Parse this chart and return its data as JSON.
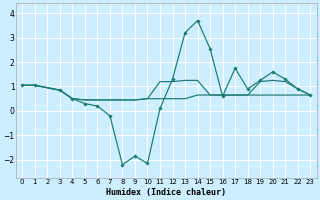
{
  "xlabel": "Humidex (Indice chaleur)",
  "background_color": "#cceeff",
  "grid_color": "#ffffff",
  "line_color": "#1a7a6e",
  "xlim": [
    -0.5,
    23.5
  ],
  "ylim": [
    -2.75,
    4.4
  ],
  "yticks": [
    -2,
    -1,
    0,
    1,
    2,
    3,
    4
  ],
  "xticks": [
    0,
    1,
    2,
    3,
    4,
    5,
    6,
    7,
    8,
    9,
    10,
    11,
    12,
    13,
    14,
    15,
    16,
    17,
    18,
    19,
    20,
    21,
    22,
    23
  ],
  "line1": {
    "x": [
      0,
      1,
      3,
      4,
      5,
      6,
      7,
      8,
      9,
      10,
      11,
      12,
      13,
      14,
      15,
      16,
      17,
      18,
      19,
      20,
      21,
      22,
      23
    ],
    "y": [
      1.05,
      1.05,
      0.85,
      0.5,
      0.3,
      0.2,
      -0.2,
      -2.2,
      -1.85,
      -2.15,
      0.1,
      1.3,
      3.2,
      3.7,
      2.55,
      0.6,
      1.75,
      0.9,
      1.25,
      1.6,
      1.3,
      0.9,
      0.65
    ]
  },
  "line2": {
    "x": [
      0,
      1,
      3,
      4,
      5,
      6,
      7,
      8,
      9,
      10,
      11,
      12,
      13,
      14,
      15,
      16,
      17,
      18,
      19,
      20,
      21,
      22,
      23
    ],
    "y": [
      1.05,
      1.05,
      0.85,
      0.5,
      0.45,
      0.45,
      0.45,
      0.45,
      0.45,
      0.5,
      1.2,
      1.2,
      1.25,
      1.25,
      0.65,
      0.65,
      0.65,
      0.65,
      1.2,
      1.25,
      1.2,
      0.9,
      0.65
    ]
  },
  "line3": {
    "x": [
      0,
      1,
      3,
      4,
      5,
      6,
      7,
      8,
      9,
      10,
      11,
      12,
      13,
      14,
      15,
      16,
      17,
      18,
      19,
      20,
      21,
      22,
      23
    ],
    "y": [
      1.05,
      1.05,
      0.85,
      0.5,
      0.45,
      0.45,
      0.45,
      0.45,
      0.45,
      0.5,
      0.5,
      0.5,
      0.5,
      0.65,
      0.65,
      0.65,
      0.65,
      0.65,
      0.65,
      0.65,
      0.65,
      0.65,
      0.65
    ]
  }
}
